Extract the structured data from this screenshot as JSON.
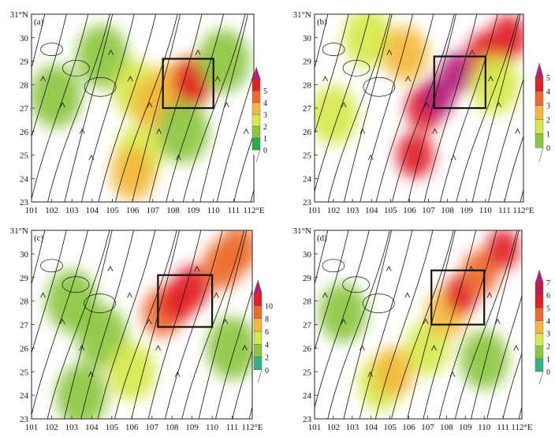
{
  "chart_data": [
    {
      "type": "map",
      "panel_label": "(a)",
      "x_ticks": [
        "101",
        "102",
        "103",
        "104",
        "105",
        "106",
        "107",
        "108",
        "109",
        "110",
        "111",
        "112°E"
      ],
      "y_ticks": [
        "23",
        "24",
        "25",
        "26",
        "27",
        "28",
        "29",
        "30",
        "31°N"
      ],
      "xlim": [
        101,
        112
      ],
      "ylim": [
        23,
        31
      ],
      "colorbar": {
        "ticks": [
          "0",
          "1",
          "2",
          "3",
          "4",
          "5"
        ],
        "colors": [
          "#2fa84f",
          "#8cc63f",
          "#d7e84a",
          "#f4b93c",
          "#ee6a2c",
          "#e21f26",
          "#b5207a"
        ]
      },
      "box": {
        "lon": [
          107.5,
          110
        ],
        "lat": [
          27,
          29.1
        ]
      },
      "shading": [
        {
          "lon": 102.2,
          "lat": 27.5,
          "level": 1
        },
        {
          "lon": 104.5,
          "lat": 29.2,
          "level": 1
        },
        {
          "lon": 106.2,
          "lat": 27.8,
          "level": 2
        },
        {
          "lon": 106.3,
          "lat": 25.0,
          "level": 2
        },
        {
          "lon": 106.0,
          "lat": 24.2,
          "level": 3
        },
        {
          "lon": 107.0,
          "lat": 27.2,
          "level": 3
        },
        {
          "lon": 108.0,
          "lat": 27.8,
          "level": 3
        },
        {
          "lon": 108.9,
          "lat": 28.2,
          "level": 4
        },
        {
          "lon": 109.0,
          "lat": 28.0,
          "level": 5
        },
        {
          "lon": 108.5,
          "lat": 26.0,
          "level": 1
        },
        {
          "lon": 110.5,
          "lat": 29.0,
          "level": 1
        }
      ]
    },
    {
      "type": "map",
      "panel_label": "(b)",
      "x_ticks": [
        "101",
        "102",
        "103",
        "104",
        "105",
        "106",
        "107",
        "108",
        "109",
        "110",
        "111",
        "112°E"
      ],
      "y_ticks": [
        "23",
        "24",
        "25",
        "26",
        "27",
        "28",
        "29",
        "30",
        "31°N"
      ],
      "xlim": [
        101,
        112
      ],
      "ylim": [
        23,
        31
      ],
      "colorbar": {
        "ticks": [
          "0",
          "1",
          "2",
          "3",
          "4",
          "5"
        ],
        "colors": [
          "#8cc63f",
          "#d7e84a",
          "#f4b93c",
          "#ee6a2c",
          "#e21f26",
          "#b5207a"
        ]
      },
      "box": {
        "lon": [
          107.3,
          110
        ],
        "lat": [
          27,
          29.2
        ]
      },
      "shading": [
        {
          "lon": 102.0,
          "lat": 26.7,
          "level": 1
        },
        {
          "lon": 103.8,
          "lat": 30.0,
          "level": 1
        },
        {
          "lon": 105.8,
          "lat": 29.3,
          "level": 2
        },
        {
          "lon": 106.3,
          "lat": 25.0,
          "level": 4
        },
        {
          "lon": 106.8,
          "lat": 27.0,
          "level": 4
        },
        {
          "lon": 107.5,
          "lat": 27.5,
          "level": 5
        },
        {
          "lon": 108.5,
          "lat": 28.5,
          "level": 5
        },
        {
          "lon": 110.0,
          "lat": 29.3,
          "level": 4
        },
        {
          "lon": 111.2,
          "lat": 30.0,
          "level": 4
        },
        {
          "lon": 110.5,
          "lat": 28.0,
          "level": 1
        }
      ]
    },
    {
      "type": "map",
      "panel_label": "(c)",
      "x_ticks": [
        "101",
        "102",
        "103",
        "104",
        "105",
        "106",
        "107",
        "108",
        "109",
        "110",
        "111",
        "112°E"
      ],
      "y_ticks": [
        "23",
        "24",
        "25",
        "26",
        "27",
        "28",
        "29",
        "30",
        "31°N"
      ],
      "xlim": [
        101,
        112
      ],
      "ylim": [
        23,
        31
      ],
      "colorbar": {
        "ticks": [
          "0",
          "2",
          "4",
          "6",
          "8",
          "10"
        ],
        "colors": [
          "#2fb38c",
          "#8cc63f",
          "#d7e84a",
          "#f4b93c",
          "#ee6a2c",
          "#e21f26",
          "#b5207a"
        ]
      },
      "box": {
        "lon": [
          107.3,
          110
        ],
        "lat": [
          26.9,
          29.1
        ]
      },
      "shading": [
        {
          "lon": 103.0,
          "lat": 28.0,
          "level": 1
        },
        {
          "lon": 104.5,
          "lat": 26.5,
          "level": 1
        },
        {
          "lon": 103.5,
          "lat": 24.0,
          "level": 1
        },
        {
          "lon": 106.0,
          "lat": 25.0,
          "level": 2
        },
        {
          "lon": 107.5,
          "lat": 27.5,
          "level": 4
        },
        {
          "lon": 108.3,
          "lat": 28.0,
          "level": 5
        },
        {
          "lon": 109.0,
          "lat": 28.6,
          "level": 5
        },
        {
          "lon": 110.5,
          "lat": 29.5,
          "level": 4
        },
        {
          "lon": 111.3,
          "lat": 30.2,
          "level": 4
        },
        {
          "lon": 111.0,
          "lat": 26.0,
          "level": 1
        }
      ]
    },
    {
      "type": "map",
      "panel_label": "(d)",
      "x_ticks": [
        "101",
        "102",
        "103",
        "104",
        "105",
        "106",
        "107",
        "108",
        "109",
        "110",
        "111",
        "112°E"
      ],
      "y_ticks": [
        "23",
        "24",
        "25",
        "26",
        "27",
        "28",
        "29",
        "30",
        "31°N"
      ],
      "xlim": [
        101,
        112
      ],
      "ylim": [
        23,
        31
      ],
      "colorbar": {
        "ticks": [
          "0",
          "1",
          "2",
          "3",
          "4",
          "5",
          "6",
          "7"
        ],
        "colors": [
          "#2fb38c",
          "#8cc63f",
          "#d7e84a",
          "#f4b93c",
          "#ee6a2c",
          "#e21f26",
          "#c21d4a",
          "#b5207a"
        ]
      },
      "box": {
        "lon": [
          107.2,
          110
        ],
        "lat": [
          27,
          29.3
        ]
      },
      "shading": [
        {
          "lon": 102.5,
          "lat": 27.5,
          "level": 1
        },
        {
          "lon": 104.5,
          "lat": 24.5,
          "level": 2
        },
        {
          "lon": 105.2,
          "lat": 25.0,
          "level": 3
        },
        {
          "lon": 107.0,
          "lat": 26.0,
          "level": 2
        },
        {
          "lon": 108.0,
          "lat": 27.5,
          "level": 3
        },
        {
          "lon": 108.8,
          "lat": 28.3,
          "level": 5
        },
        {
          "lon": 109.8,
          "lat": 29.2,
          "level": 4
        },
        {
          "lon": 111.0,
          "lat": 30.2,
          "level": 5
        },
        {
          "lon": 110.0,
          "lat": 25.5,
          "level": 1
        }
      ]
    }
  ]
}
